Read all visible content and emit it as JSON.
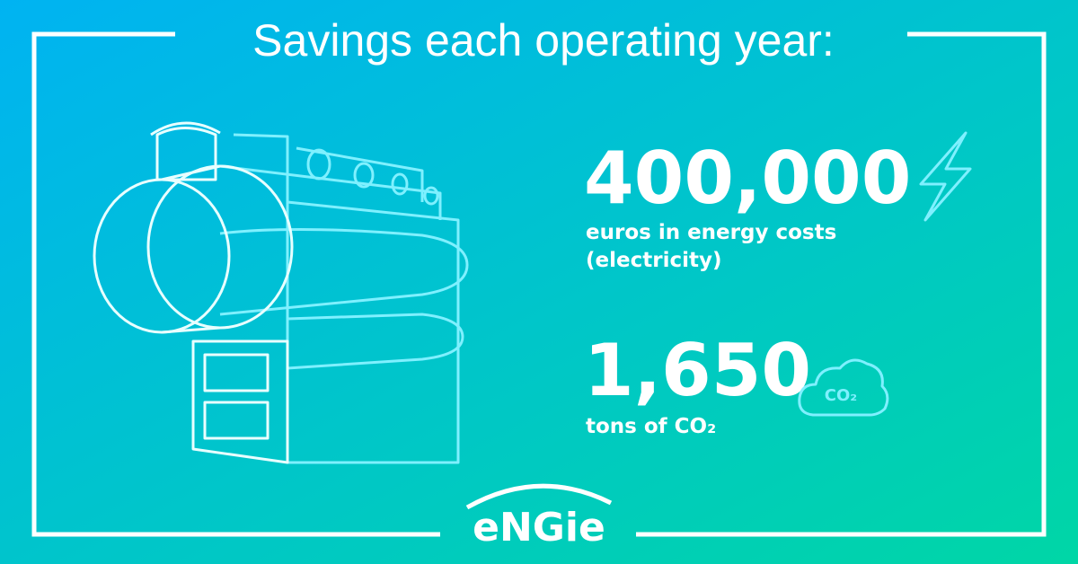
{
  "header": {
    "title": "Savings each operating year:"
  },
  "stats": [
    {
      "value": "400,000",
      "lines": [
        "euros in energy costs",
        "(electricity)"
      ]
    },
    {
      "value": "1,650",
      "lines": [
        "tons of CO₂"
      ],
      "icon_label": "CO₂"
    }
  ],
  "footer": {
    "logo": "eNGie"
  }
}
